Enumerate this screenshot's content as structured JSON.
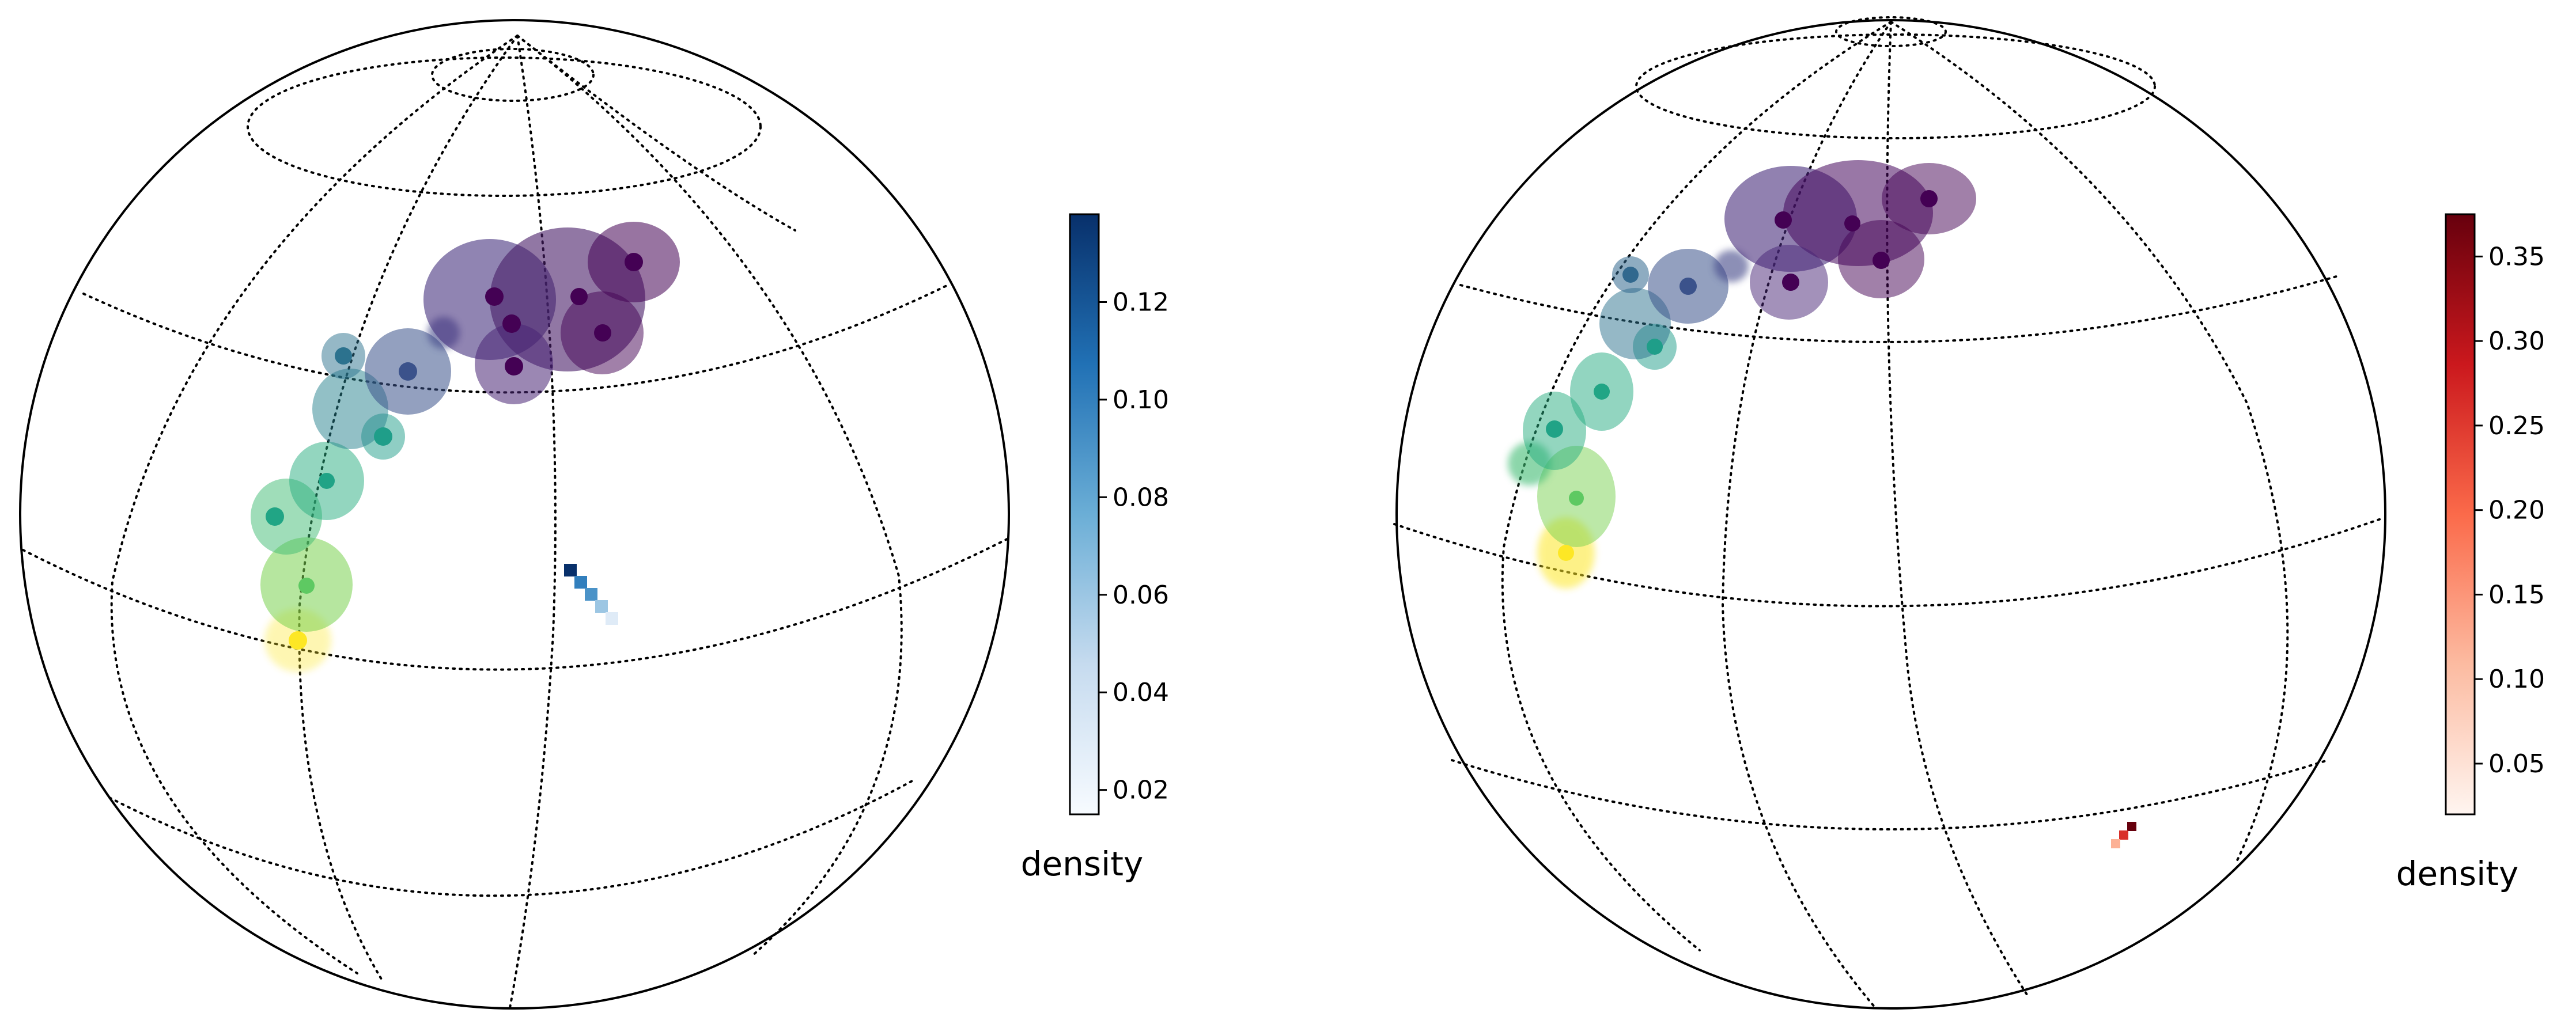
{
  "chart_data": [
    {
      "type": "orthographic-globe-density",
      "panel": "left",
      "colorbar": {
        "label": "density",
        "colormap": "Blues",
        "range": [
          0.015,
          0.138
        ],
        "ticks": [
          "0.02",
          "0.04",
          "0.06",
          "0.08",
          "0.10",
          "0.12"
        ],
        "tick_values": [
          0.02,
          0.04,
          0.06,
          0.08,
          0.1,
          0.12
        ],
        "colors": [
          "#f7fbff",
          "#c6dbef",
          "#6baed6",
          "#2171b5",
          "#08306b"
        ]
      },
      "graticule": {
        "style": "dotted",
        "color": "#000000"
      },
      "uncertainty_colormap": "viridis",
      "density_blob_values": [
        0.138,
        0.1,
        0.09,
        0.06,
        0.03
      ]
    },
    {
      "type": "orthographic-globe-density",
      "panel": "right",
      "colorbar": {
        "label": "density",
        "colormap": "Reds",
        "range": [
          0.02,
          0.375
        ],
        "ticks": [
          "0.05",
          "0.10",
          "0.15",
          "0.20",
          "0.25",
          "0.30",
          "0.35"
        ],
        "tick_values": [
          0.05,
          0.1,
          0.15,
          0.2,
          0.25,
          0.3,
          0.35
        ],
        "colors": [
          "#fff5f0",
          "#fcbba1",
          "#fb6a4a",
          "#cb181d",
          "#67000d"
        ]
      },
      "graticule": {
        "style": "dotted",
        "color": "#000000"
      },
      "uncertainty_colormap": "viridis",
      "density_blob_values": [
        0.375,
        0.26,
        0.12
      ]
    }
  ]
}
